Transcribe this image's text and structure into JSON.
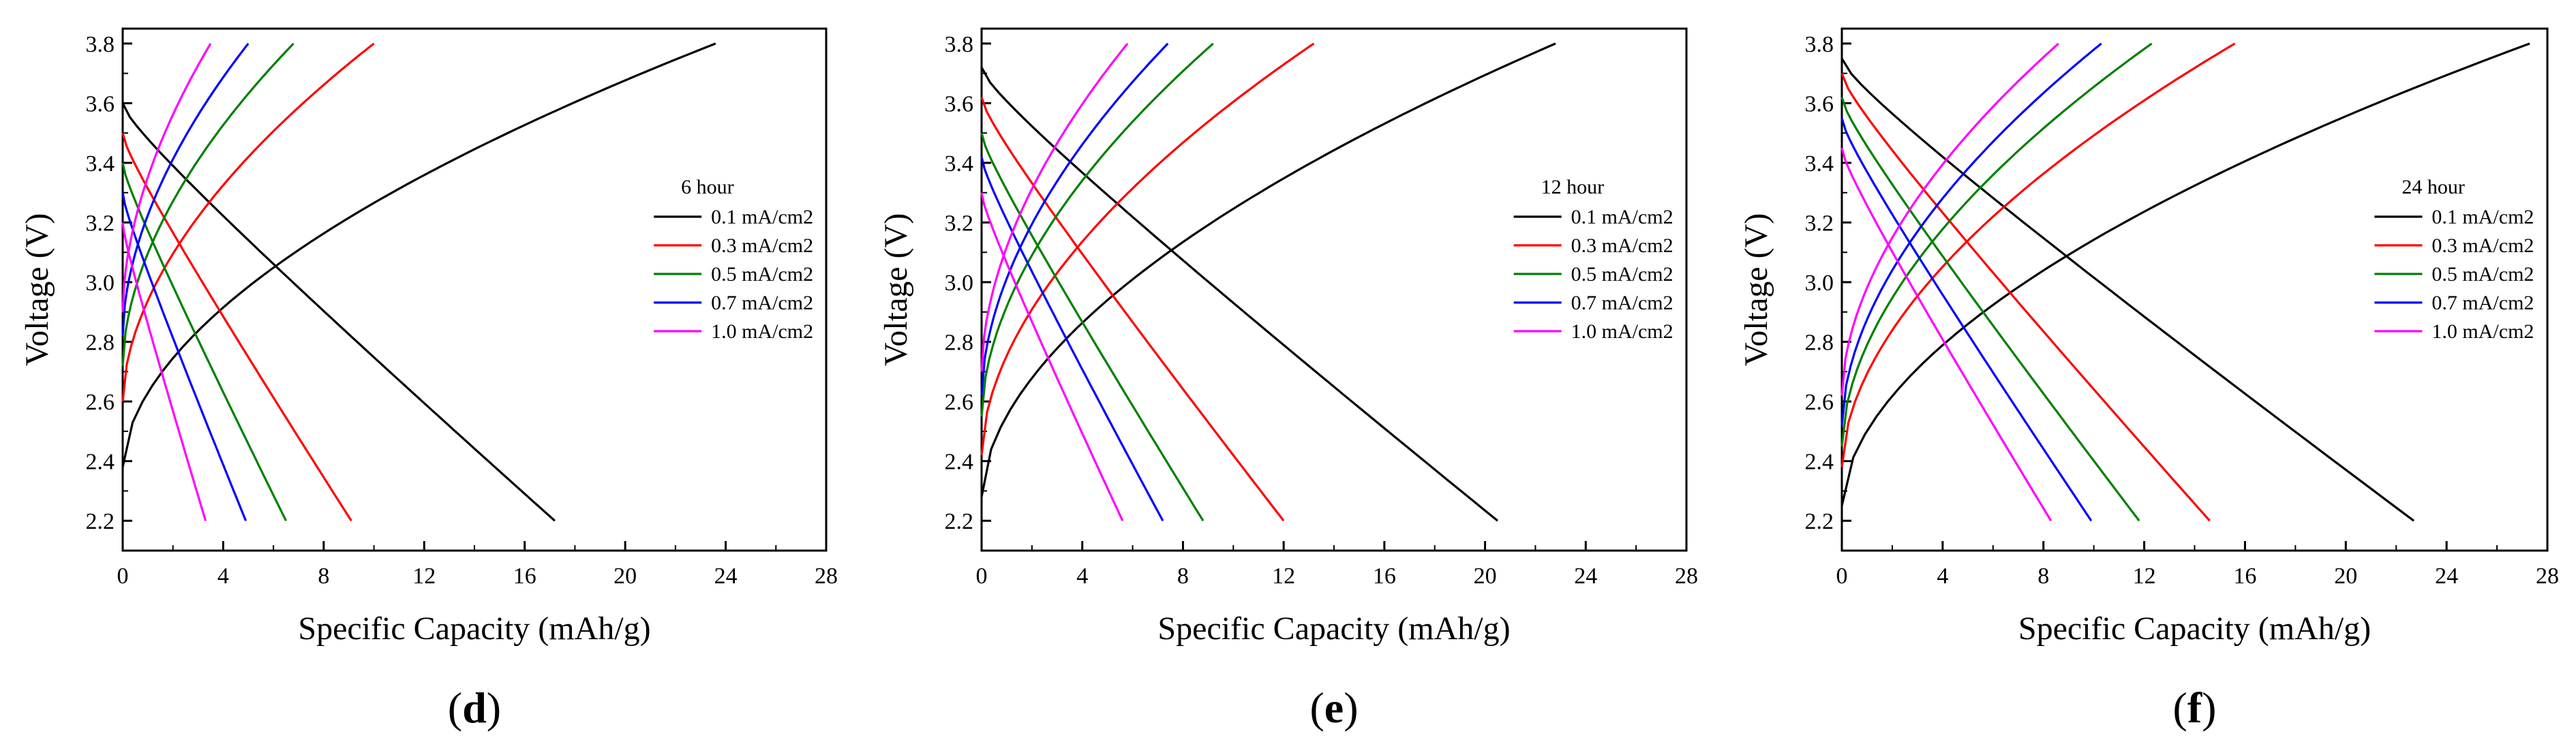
{
  "figure": {
    "panels_count": 3
  },
  "chart_data": [
    {
      "type": "line",
      "panel_label": "d",
      "legend_title": "6 hour",
      "xlabel": "Specific Capacity (mAh/g)",
      "ylabel": "Voltage (V)",
      "xlim": [
        0,
        28
      ],
      "ylim": [
        2.1,
        3.85
      ],
      "xticks": [
        0,
        4,
        8,
        12,
        16,
        20,
        24,
        28
      ],
      "yticks": [
        2.2,
        2.4,
        2.6,
        2.8,
        3.0,
        3.2,
        3.4,
        3.6,
        3.8
      ],
      "ytick_labels": [
        "2.2",
        "2.4",
        "2.6",
        "2.8",
        "3.0",
        "3.2",
        "3.4",
        "3.6",
        "3.8"
      ],
      "series": [
        {
          "name": "0.1 mA/cm2",
          "color": "#000000",
          "charge": {
            "cap": 23.6,
            "v0": 2.38,
            "k": 0.55
          },
          "discharge": {
            "cap": 17.2,
            "v0": 3.6,
            "k": 1.0
          }
        },
        {
          "name": "0.3 mA/cm2",
          "color": "#ff0000",
          "charge": {
            "cap": 10.0,
            "v0": 2.6,
            "k": 0.55
          },
          "discharge": {
            "cap": 9.1,
            "v0": 3.5,
            "k": 1.0
          }
        },
        {
          "name": "0.5 mA/cm2",
          "color": "#008000",
          "charge": {
            "cap": 6.8,
            "v0": 2.72,
            "k": 0.55
          },
          "discharge": {
            "cap": 6.5,
            "v0": 3.4,
            "k": 1.0
          }
        },
        {
          "name": "0.7 mA/cm2",
          "color": "#0000ff",
          "charge": {
            "cap": 5.0,
            "v0": 2.82,
            "k": 0.55
          },
          "discharge": {
            "cap": 4.9,
            "v0": 3.3,
            "k": 1.0
          }
        },
        {
          "name": "1.0 mA/cm2",
          "color": "#ff00ff",
          "charge": {
            "cap": 3.5,
            "v0": 2.9,
            "k": 0.55
          },
          "discharge": {
            "cap": 3.3,
            "v0": 3.2,
            "k": 1.0
          }
        }
      ]
    },
    {
      "type": "line",
      "panel_label": "e",
      "legend_title": "12 hour",
      "xlabel": "Specific Capacity (mAh/g)",
      "ylabel": "Voltage (V)",
      "xlim": [
        0,
        28
      ],
      "ylim": [
        2.1,
        3.85
      ],
      "xticks": [
        0,
        4,
        8,
        12,
        16,
        20,
        24,
        28
      ],
      "yticks": [
        2.2,
        2.4,
        2.6,
        2.8,
        3.0,
        3.2,
        3.4,
        3.6,
        3.8
      ],
      "ytick_labels": [
        "2.2",
        "2.4",
        "2.6",
        "2.8",
        "3.0",
        "3.2",
        "3.4",
        "3.6",
        "3.8"
      ],
      "series": [
        {
          "name": "0.1 mA/cm2",
          "color": "#000000",
          "charge": {
            "cap": 22.8,
            "v0": 2.28,
            "k": 0.55
          },
          "discharge": {
            "cap": 20.5,
            "v0": 3.72,
            "k": 1.0
          }
        },
        {
          "name": "0.3 mA/cm2",
          "color": "#ff0000",
          "charge": {
            "cap": 13.2,
            "v0": 2.42,
            "k": 0.55
          },
          "discharge": {
            "cap": 12.0,
            "v0": 3.62,
            "k": 1.0
          }
        },
        {
          "name": "0.5 mA/cm2",
          "color": "#008000",
          "charge": {
            "cap": 9.2,
            "v0": 2.55,
            "k": 0.55
          },
          "discharge": {
            "cap": 8.8,
            "v0": 3.5,
            "k": 1.0
          }
        },
        {
          "name": "0.7 mA/cm2",
          "color": "#0000ff",
          "charge": {
            "cap": 7.4,
            "v0": 2.62,
            "k": 0.55
          },
          "discharge": {
            "cap": 7.2,
            "v0": 3.42,
            "k": 1.0
          }
        },
        {
          "name": "1.0 mA/cm2",
          "color": "#ff00ff",
          "charge": {
            "cap": 5.8,
            "v0": 2.7,
            "k": 0.55
          },
          "discharge": {
            "cap": 5.6,
            "v0": 3.3,
            "k": 1.0
          }
        }
      ]
    },
    {
      "type": "line",
      "panel_label": "f",
      "legend_title": "24 hour",
      "xlabel": "Specific Capacity (mAh/g)",
      "ylabel": "Voltage (V)",
      "xlim": [
        0,
        28
      ],
      "ylim": [
        2.1,
        3.85
      ],
      "xticks": [
        0,
        4,
        8,
        12,
        16,
        20,
        24,
        28
      ],
      "yticks": [
        2.2,
        2.4,
        2.6,
        2.8,
        3.0,
        3.2,
        3.4,
        3.6,
        3.8
      ],
      "ytick_labels": [
        "2.2",
        "2.4",
        "2.6",
        "2.8",
        "3.0",
        "3.2",
        "3.4",
        "3.6",
        "3.8"
      ],
      "series": [
        {
          "name": "0.1 mA/cm2",
          "color": "#000000",
          "charge": {
            "cap": 27.3,
            "v0": 2.25,
            "k": 0.55
          },
          "discharge": {
            "cap": 22.7,
            "v0": 3.75,
            "k": 1.0
          }
        },
        {
          "name": "0.3 mA/cm2",
          "color": "#ff0000",
          "charge": {
            "cap": 15.6,
            "v0": 2.38,
            "k": 0.55
          },
          "discharge": {
            "cap": 14.6,
            "v0": 3.7,
            "k": 1.0
          }
        },
        {
          "name": "0.5 mA/cm2",
          "color": "#008000",
          "charge": {
            "cap": 12.3,
            "v0": 2.45,
            "k": 0.55
          },
          "discharge": {
            "cap": 11.8,
            "v0": 3.62,
            "k": 1.0
          }
        },
        {
          "name": "0.7 mA/cm2",
          "color": "#0000ff",
          "charge": {
            "cap": 10.3,
            "v0": 2.52,
            "k": 0.55
          },
          "discharge": {
            "cap": 9.9,
            "v0": 3.55,
            "k": 1.0
          }
        },
        {
          "name": "1.0 mA/cm2",
          "color": "#ff00ff",
          "charge": {
            "cap": 8.6,
            "v0": 2.62,
            "k": 0.55
          },
          "discharge": {
            "cap": 8.3,
            "v0": 3.45,
            "k": 1.0
          }
        }
      ]
    }
  ]
}
